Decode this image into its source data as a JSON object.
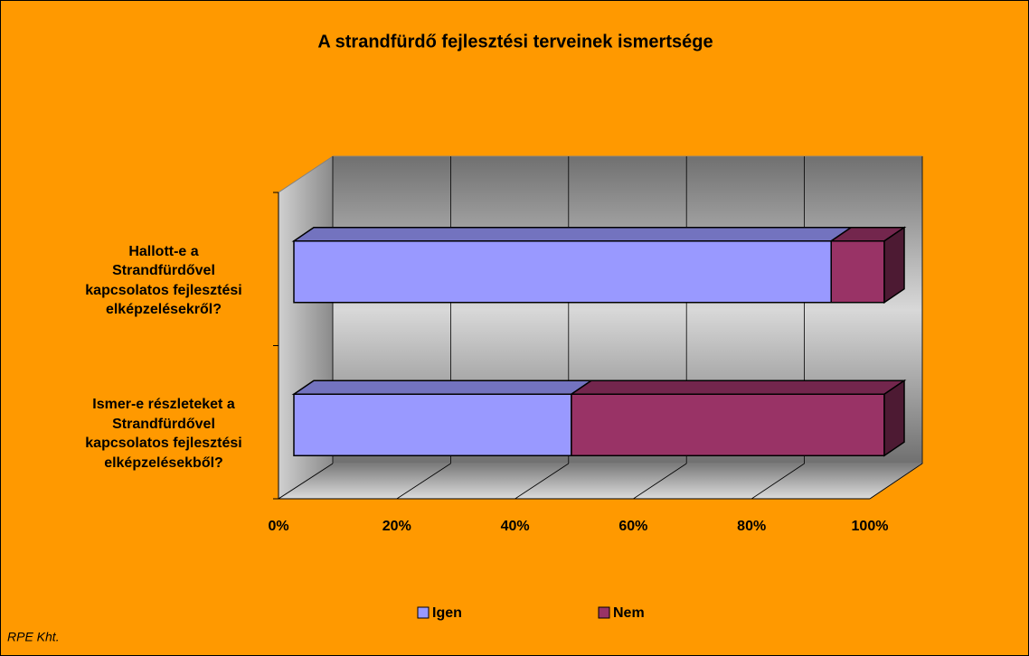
{
  "chart_data": {
    "type": "stacked-bar-3d-horizontal",
    "title": "A strandfürdő fejlesztési terveinek ismertsége",
    "categories": [
      "Hallott-e a Strandfürdővel kapcsolatos fejlesztési elképzelésekről?",
      "Ismer-e részleteket a Strandfürdővel kapcsolatos fejlesztési elképzelésekből?"
    ],
    "series": [
      {
        "name": "Igen",
        "color": "#9999FF",
        "values": [
          91,
          47
        ]
      },
      {
        "name": "Nem",
        "color": "#993366",
        "values": [
          9,
          53
        ]
      }
    ],
    "xlim": [
      0,
      100
    ],
    "xticks": [
      {
        "value": 0,
        "label": "0%"
      },
      {
        "value": 20,
        "label": "20%"
      },
      {
        "value": 40,
        "label": "40%"
      },
      {
        "value": 60,
        "label": "60%"
      },
      {
        "value": 80,
        "label": "80%"
      },
      {
        "value": 100,
        "label": "100%"
      }
    ],
    "grid": true,
    "legend": "bottom",
    "footer": "RPE Kht."
  }
}
